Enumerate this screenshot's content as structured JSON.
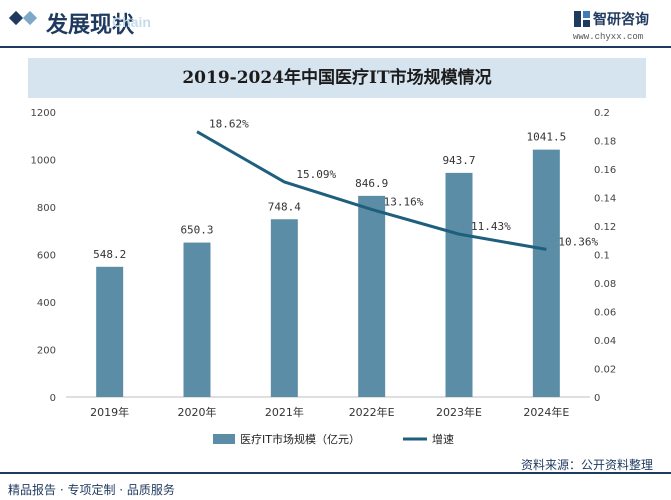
{
  "header": {
    "title": "发展现状",
    "ghost_text": "Chain",
    "brand": "智研咨询",
    "url": "www.chyxx.com"
  },
  "footer": {
    "left_text": "精品报告 · 专项定制 · 品质服务",
    "source_text": "资料来源：公开资料整理"
  },
  "colors": {
    "bar": "#5b8ea6",
    "line": "#1e5f7e",
    "header": "#1f3a5f",
    "title_band": "#d6e4f0"
  },
  "chart_data": {
    "type": "bar",
    "title": "2019-2024年中国医疗IT市场规模情况",
    "categories": [
      "2019年",
      "2020年",
      "2021年",
      "2022年E",
      "2023年E",
      "2024年E"
    ],
    "series": [
      {
        "name": "医疗IT市场规模（亿元）",
        "type": "bar",
        "axis": "left",
        "values": [
          548.2,
          650.3,
          748.4,
          846.9,
          943.7,
          1041.5
        ],
        "labels": [
          "548.2",
          "650.3",
          "748.4",
          "846.9",
          "943.7",
          "1041.5"
        ]
      },
      {
        "name": "增速",
        "type": "line",
        "axis": "right",
        "values": [
          null,
          0.1862,
          0.1509,
          0.1316,
          0.1143,
          0.1036
        ],
        "labels": [
          "",
          "18.62%",
          "15.09%",
          "13.16%",
          "11.43%",
          "10.36%"
        ]
      }
    ],
    "y_left": {
      "min": 0,
      "max": 1200,
      "ticks": [
        "0",
        "200",
        "400",
        "600",
        "800",
        "1000",
        "1200"
      ]
    },
    "y_right": {
      "min": 0,
      "max": 0.2,
      "ticks": [
        "0",
        "0.02",
        "0.04",
        "0.06",
        "0.08",
        "0.1",
        "0.12",
        "0.14",
        "0.16",
        "0.18",
        "0.2"
      ]
    },
    "grid": false,
    "legend": "bottom"
  }
}
